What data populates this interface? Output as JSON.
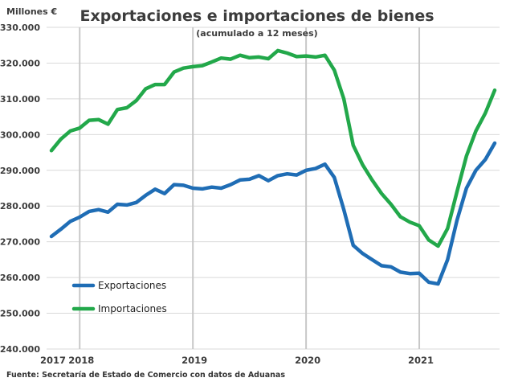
{
  "chart_data": {
    "type": "line",
    "title": "Exportaciones e importaciones de bienes",
    "subtitle": "(acumulado a 12 meses)",
    "unit_label": "Millones €",
    "ylim": [
      240000,
      330000
    ],
    "y_ticks": [
      240000,
      250000,
      260000,
      270000,
      280000,
      290000,
      300000,
      310000,
      320000,
      330000
    ],
    "y_tick_labels": [
      "240.000",
      "250.000",
      "260.000",
      "270.000",
      "280.000",
      "290.000",
      "300.000",
      "310.000",
      "320.000",
      "330.000"
    ],
    "x_tick_labels": [
      "2017",
      "2018",
      "2019",
      "2020",
      "2021"
    ],
    "x_tick_months": [
      0,
      3,
      15,
      27,
      39
    ],
    "vertical_gridlines_at_months": [
      3,
      15,
      27,
      39
    ],
    "x_range_months": [
      0,
      47
    ],
    "legend_position": "bottom-left",
    "colors": {
      "exportaciones": "#1f6db5",
      "importaciones": "#22a84a"
    },
    "series": [
      {
        "name": "Exportaciones",
        "color": "#1f6db5",
        "values": [
          271500,
          273500,
          275700,
          276900,
          278500,
          279000,
          278300,
          280500,
          280300,
          281000,
          283000,
          284700,
          283500,
          286000,
          285800,
          285000,
          284800,
          285300,
          285000,
          286000,
          287300,
          287500,
          288500,
          287100,
          288500,
          289000,
          288700,
          290000,
          290500,
          291700,
          288000,
          279000,
          269000,
          266700,
          265000,
          263300,
          263000,
          261500,
          261100,
          261200,
          258700,
          258200,
          265000,
          276000,
          285000,
          290000,
          293000,
          297600
        ]
      },
      {
        "name": "Importaciones",
        "color": "#22a84a",
        "values": [
          295500,
          298700,
          301000,
          301800,
          304000,
          304200,
          302900,
          307000,
          307500,
          309500,
          312800,
          314000,
          314000,
          317500,
          318600,
          319000,
          319300,
          320300,
          321400,
          321100,
          322200,
          321500,
          321700,
          321200,
          323500,
          322800,
          321800,
          322000,
          321700,
          322200,
          318000,
          310000,
          297000,
          291500,
          287300,
          283500,
          280500,
          277000,
          275500,
          274500,
          270500,
          268800,
          273700,
          284000,
          294000,
          301000,
          306000,
          312400
        ]
      }
    ],
    "source": "Fuente: Secretaría de Estado de Comercio con datos de Aduanas"
  }
}
